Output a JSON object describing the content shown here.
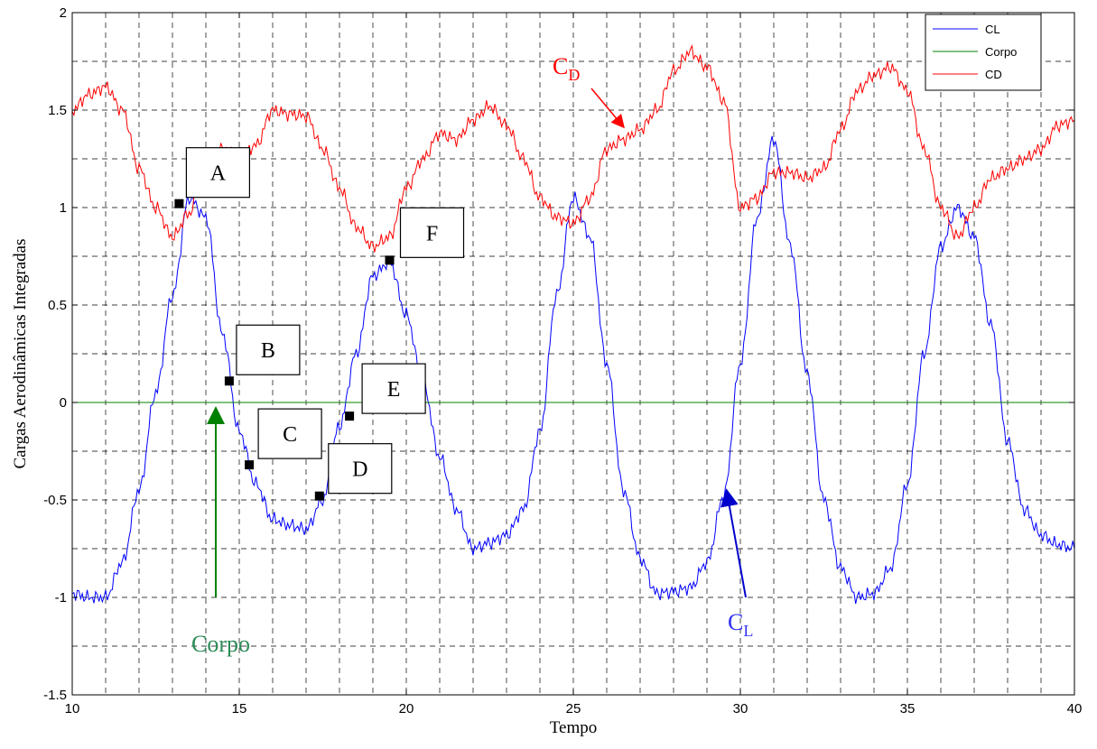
{
  "chart_data": {
    "type": "line",
    "xlabel": "Tempo",
    "ylabel": "Cargas Aerodinâmicas Integradas",
    "xlim": [
      10,
      40
    ],
    "ylim": [
      -1.5,
      2
    ],
    "x_ticks": [
      10,
      15,
      20,
      25,
      30,
      35,
      40
    ],
    "x_tick_labels": [
      "10",
      "15",
      "20",
      "25",
      "30",
      "35",
      "40"
    ],
    "y_ticks": [
      -1.5,
      -1,
      -0.5,
      0,
      0.5,
      1,
      1.5,
      2
    ],
    "y_tick_labels": [
      "-1.5",
      "-1",
      "-0.5",
      "0",
      "0.5",
      "1",
      "1.5",
      "2"
    ],
    "grid": true,
    "legend_position": "top-right",
    "series": [
      {
        "name": "CL",
        "color": "#0000ff",
        "x": [
          10,
          10.5,
          11,
          11.5,
          12,
          12.5,
          13,
          13.5,
          14,
          14.5,
          15,
          15.5,
          16,
          16.5,
          17,
          17.5,
          18,
          18.5,
          19,
          19.5,
          20,
          20.5,
          21,
          21.5,
          22,
          22.5,
          23,
          23.5,
          24,
          24.5,
          25,
          25.5,
          26,
          26.5,
          27,
          27.5,
          28,
          28.5,
          29,
          29.5,
          30,
          30.5,
          31,
          31.5,
          32,
          32.5,
          33,
          33.5,
          34,
          34.5,
          35,
          35.5,
          36,
          36.5,
          37,
          37.5,
          38,
          38.5,
          39,
          39.5,
          40
        ],
        "y": [
          -0.98,
          -1.0,
          -1.0,
          -0.82,
          -0.45,
          0.05,
          0.55,
          1.05,
          0.95,
          0.35,
          -0.15,
          -0.42,
          -0.6,
          -0.63,
          -0.65,
          -0.5,
          -0.12,
          0.25,
          0.65,
          0.72,
          0.45,
          0.1,
          -0.28,
          -0.55,
          -0.75,
          -0.72,
          -0.68,
          -0.55,
          -0.15,
          0.55,
          1.05,
          0.85,
          0.2,
          -0.45,
          -0.8,
          -0.98,
          -0.97,
          -0.95,
          -0.82,
          -0.48,
          0.2,
          0.95,
          1.35,
          0.8,
          0.15,
          -0.5,
          -0.85,
          -1.0,
          -0.98,
          -0.85,
          -0.42,
          0.25,
          0.8,
          1.0,
          0.85,
          0.4,
          -0.2,
          -0.55,
          -0.68,
          -0.73,
          -0.75
        ]
      },
      {
        "name": "Corpo",
        "color": "#008000",
        "x": [
          10,
          40
        ],
        "y": [
          0,
          0
        ]
      },
      {
        "name": "CD",
        "color": "#ff0000",
        "x": [
          10,
          10.5,
          11,
          11.5,
          12,
          12.5,
          13,
          13.5,
          14,
          14.5,
          15,
          15.5,
          16,
          16.5,
          17,
          17.5,
          18,
          18.5,
          19,
          19.5,
          20,
          20.5,
          21,
          21.5,
          22,
          22.5,
          23,
          23.5,
          24,
          24.5,
          25,
          25.5,
          26,
          26.5,
          27,
          27.5,
          28,
          28.5,
          29,
          29.5,
          30,
          30.5,
          31,
          31.5,
          32,
          32.5,
          33,
          33.5,
          34,
          34.5,
          35,
          35.5,
          36,
          36.5,
          37,
          37.5,
          38,
          38.5,
          39,
          39.5,
          40
        ],
        "y": [
          1.5,
          1.58,
          1.62,
          1.5,
          1.2,
          1.0,
          0.85,
          0.97,
          1.25,
          1.3,
          1.25,
          1.32,
          1.5,
          1.48,
          1.47,
          1.3,
          1.1,
          0.9,
          0.8,
          0.85,
          1.1,
          1.25,
          1.38,
          1.35,
          1.45,
          1.52,
          1.42,
          1.25,
          1.05,
          0.95,
          0.92,
          1.05,
          1.3,
          1.35,
          1.4,
          1.5,
          1.7,
          1.8,
          1.72,
          1.55,
          1.0,
          1.05,
          1.18,
          1.18,
          1.15,
          1.2,
          1.4,
          1.6,
          1.68,
          1.72,
          1.6,
          1.3,
          1.0,
          0.85,
          1.0,
          1.15,
          1.2,
          1.25,
          1.3,
          1.42,
          1.45
        ]
      }
    ],
    "points": [
      {
        "label": "A",
        "x": 13.2,
        "y": 1.02
      },
      {
        "label": "B",
        "x": 14.7,
        "y": 0.11
      },
      {
        "label": "C",
        "x": 15.3,
        "y": -0.32
      },
      {
        "label": "D",
        "x": 17.4,
        "y": -0.48
      },
      {
        "label": "E",
        "x": 18.3,
        "y": -0.07
      },
      {
        "label": "F",
        "x": 19.5,
        "y": 0.73
      }
    ],
    "annotations": {
      "cd_base": "C",
      "cd_sub": "D",
      "cl_base": "C",
      "cl_sub": "L",
      "corpo": "Corpo"
    }
  }
}
